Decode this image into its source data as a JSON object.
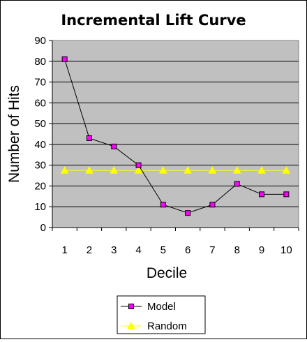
{
  "chart_data": {
    "type": "line",
    "title": "Incremental Lift Curve",
    "xlabel": "Decile",
    "ylabel": "Number of Hits",
    "categories": [
      "1",
      "2",
      "3",
      "4",
      "5",
      "6",
      "7",
      "8",
      "9",
      "10"
    ],
    "ylim": [
      0,
      90
    ],
    "yticks": [
      0,
      10,
      20,
      30,
      40,
      50,
      60,
      70,
      80,
      90
    ],
    "grid": true,
    "legend_position": "bottom",
    "plot_background": "#c0c0c0",
    "series": [
      {
        "name": "Model",
        "values": [
          81,
          43,
          39,
          30,
          11,
          7,
          11,
          21,
          16,
          16
        ],
        "line_color": "#000000",
        "marker": "square",
        "marker_color": "#ff00ff"
      },
      {
        "name": "Random",
        "values": [
          27.5,
          27.5,
          27.5,
          27.5,
          27.5,
          27.5,
          27.5,
          27.5,
          27.5,
          27.5
        ],
        "line_color": "#ffff00",
        "marker": "triangle",
        "marker_color": "#ffff00"
      }
    ]
  }
}
